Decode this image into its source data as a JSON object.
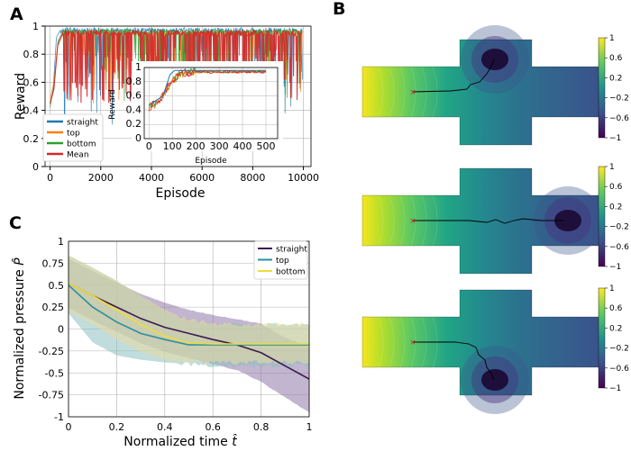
{
  "panels": {
    "a": "A",
    "b": "B",
    "c": "C"
  },
  "colors": {
    "straight_a": "#1f77b4",
    "top_a": "#ff7f0e",
    "bottom_a": "#2ca02c",
    "mean_a": "#d62728",
    "straight_c": "#3b1a4f",
    "top_c": "#2a8fa0",
    "bottom_c": "#f0dc3a"
  },
  "chart_data": [
    {
      "type": "line",
      "title": "",
      "xlabel": "Episode",
      "ylabel": "Reward",
      "xlim": [
        -200,
        10300
      ],
      "ylim": [
        0,
        1
      ],
      "xticks": [
        0,
        2000,
        4000,
        6000,
        8000,
        10000
      ],
      "yticks": [
        0,
        0.2,
        0.4,
        0.6,
        0.8,
        1
      ],
      "grid": true,
      "legend": "bottom-left",
      "series": [
        {
          "name": "straight",
          "color": "#1f77b4",
          "start": [
            [
              0,
              0.45
            ],
            [
              120,
              0.55
            ],
            [
              250,
              0.92
            ],
            [
              400,
              0.97
            ]
          ],
          "plateau": 0.97
        },
        {
          "name": "top",
          "color": "#ff7f0e",
          "start": [
            [
              0,
              0.48
            ],
            [
              150,
              0.6
            ],
            [
              300,
              0.88
            ],
            [
              500,
              0.95
            ]
          ],
          "plateau": 0.95
        },
        {
          "name": "bottom",
          "color": "#2ca02c",
          "start": [
            [
              0,
              0.42
            ],
            [
              150,
              0.58
            ],
            [
              320,
              0.9
            ],
            [
              500,
              0.96
            ]
          ],
          "plateau": 0.96
        },
        {
          "name": "Mean",
          "color": "#d62728",
          "start": [
            [
              0,
              0.45
            ],
            [
              150,
              0.55
            ],
            [
              300,
              0.86
            ],
            [
              500,
              0.95
            ]
          ],
          "plateau": 0.95
        }
      ],
      "inset": {
        "xlabel": "Episode",
        "ylabel": "Reward",
        "xlim": [
          -20,
          550
        ],
        "ylim": [
          0,
          1
        ],
        "xticks": [
          0,
          100,
          200,
          300,
          400,
          500
        ],
        "yticks": [
          0,
          0.2,
          0.4,
          0.6,
          0.8,
          1
        ],
        "curve": [
          [
            0,
            0.45
          ],
          [
            40,
            0.5
          ],
          [
            60,
            0.62
          ],
          [
            80,
            0.72
          ],
          [
            100,
            0.8
          ],
          [
            120,
            0.88
          ],
          [
            150,
            0.92
          ],
          [
            200,
            0.94
          ],
          [
            500,
            0.94
          ]
        ],
        "straight": [
          [
            0,
            0.47
          ],
          [
            60,
            0.6
          ],
          [
            90,
            0.9
          ],
          [
            110,
            0.96
          ],
          [
            500,
            0.96
          ]
        ]
      }
    },
    {
      "type": "area",
      "title": "",
      "xlabel": "Normalized time",
      "xlabel_symbol": "t̂",
      "ylabel": "Normalized pressure",
      "ylabel_symbol": "P̂",
      "xlim": [
        0,
        1
      ],
      "ylim": [
        -1,
        1
      ],
      "xticks": [
        0,
        0.2,
        0.4,
        0.6,
        0.8,
        1
      ],
      "yticks": [
        -1,
        -0.75,
        -0.5,
        -0.25,
        0,
        0.25,
        0.5,
        0.75,
        1
      ],
      "grid": true,
      "legend": "top-right",
      "series": [
        {
          "name": "straight",
          "color": "#3b1a4f",
          "x": [
            0,
            0.1,
            0.2,
            0.3,
            0.4,
            0.5,
            0.6,
            0.7,
            0.8,
            0.9,
            1.0
          ],
          "mean": [
            0.52,
            0.38,
            0.25,
            0.12,
            0.02,
            -0.05,
            -0.12,
            -0.18,
            -0.27,
            -0.42,
            -0.57
          ],
          "upper": [
            0.8,
            0.66,
            0.53,
            0.4,
            0.3,
            0.22,
            0.16,
            0.11,
            0.06,
            -0.1,
            -0.2
          ],
          "lower": [
            0.24,
            0.1,
            -0.03,
            -0.16,
            -0.26,
            -0.33,
            -0.4,
            -0.47,
            -0.6,
            -0.78,
            -0.95
          ]
        },
        {
          "name": "top",
          "color": "#2a8fa0",
          "x": [
            0,
            0.1,
            0.2,
            0.3,
            0.4,
            0.5,
            0.6,
            0.7,
            0.8,
            0.9,
            1.0
          ],
          "mean": [
            0.5,
            0.25,
            0.08,
            -0.05,
            -0.12,
            -0.18,
            -0.18,
            -0.18,
            -0.18,
            -0.18,
            -0.18
          ],
          "upper": [
            0.84,
            0.7,
            0.55,
            0.38,
            0.2,
            0.08,
            0.05,
            0.05,
            0.05,
            0.05,
            0.05
          ],
          "lower": [
            0.18,
            -0.15,
            -0.3,
            -0.35,
            -0.38,
            -0.4,
            -0.42,
            -0.42,
            -0.42,
            -0.42,
            -0.42
          ]
        },
        {
          "name": "bottom",
          "color": "#f0dc3a",
          "x": [
            0,
            0.1,
            0.2,
            0.3,
            0.4,
            0.5,
            0.6,
            0.7,
            0.8,
            0.9,
            1.0
          ],
          "mean": [
            0.52,
            0.38,
            0.22,
            0.05,
            -0.08,
            -0.16,
            -0.17,
            -0.17,
            -0.17,
            -0.17,
            -0.17
          ],
          "upper": [
            0.84,
            0.7,
            0.55,
            0.38,
            0.22,
            0.1,
            0.06,
            0.05,
            0.05,
            0.05,
            0.05
          ],
          "lower": [
            0.2,
            0.05,
            -0.12,
            -0.26,
            -0.35,
            -0.38,
            -0.38,
            -0.38,
            -0.38,
            -0.38,
            -0.38
          ]
        }
      ]
    },
    {
      "type": "heatmap",
      "title": "",
      "colorbar": {
        "ticks": [
          1,
          0.6,
          0.2,
          -0.2,
          -0.6,
          -1
        ],
        "tick_labels": [
          "1",
          "0.6",
          "0.2",
          "−0.2",
          "−0.6",
          "−1"
        ],
        "range": [
          -1,
          1
        ],
        "colormap": "viridis"
      },
      "maps": [
        {
          "case": "straight",
          "target": "top"
        },
        {
          "case": "top",
          "target": "right"
        },
        {
          "case": "bottom",
          "target": "bottom"
        }
      ]
    }
  ]
}
